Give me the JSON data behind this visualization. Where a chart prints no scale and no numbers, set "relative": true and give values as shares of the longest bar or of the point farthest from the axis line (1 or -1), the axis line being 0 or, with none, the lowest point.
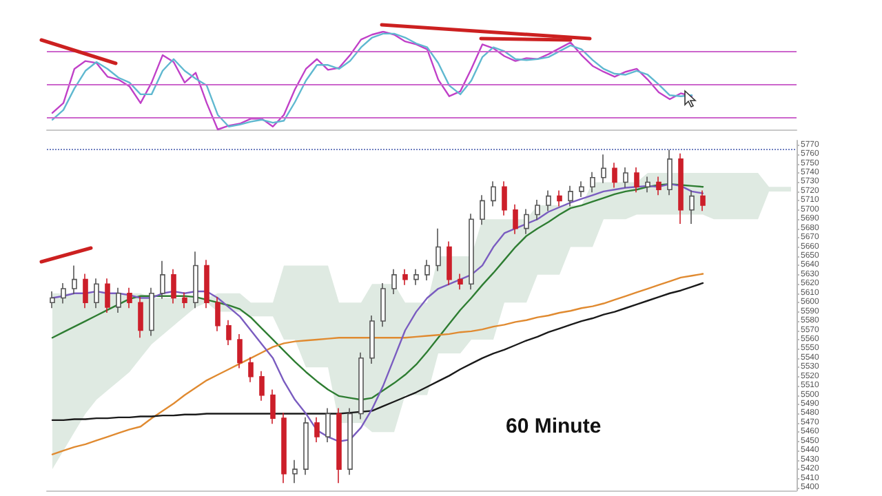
{
  "chart_data": [
    {
      "type": "line",
      "relative": true,
      "categories": [
        null,
        null,
        null,
        null,
        null,
        null,
        null,
        null,
        null,
        null,
        null,
        null,
        null,
        null,
        null,
        null,
        null,
        null,
        null,
        null,
        null,
        null,
        null,
        null,
        null,
        null,
        null,
        null,
        null,
        null,
        null,
        null,
        null,
        null,
        null,
        null,
        null,
        null,
        null,
        null,
        null,
        null,
        null,
        null,
        null,
        null,
        null,
        null,
        null,
        null,
        null,
        null,
        null,
        null,
        null,
        null,
        null,
        null,
        null,
        null,
        null,
        null,
        null,
        null,
        null,
        null,
        null,
        null
      ],
      "tick_labels": false,
      "marker": "none",
      "line_style": "solid",
      "ref_lines": [
        {
          "axis": "y",
          "value": 0.8,
          "color": "#cc66cc"
        },
        {
          "axis": "y",
          "value": 0.46,
          "color": "#cc66cc"
        },
        {
          "axis": "y",
          "value": 0.13,
          "color": "#cc66cc"
        }
      ],
      "series": [
        {
          "color": "#c040c8",
          "values": [
            0.17,
            0.27,
            0.62,
            0.7,
            0.68,
            0.54,
            0.51,
            0.44,
            0.27,
            0.48,
            0.76,
            0.69,
            0.48,
            0.58,
            0.27,
            0,
            0.04,
            0.06,
            0.11,
            0.11,
            0.03,
            0.15,
            0.41,
            0.62,
            0.72,
            0.61,
            0.63,
            0.76,
            0.92,
            0.97,
            1,
            0.97,
            0.9,
            0.87,
            0.82,
            0.51,
            0.34,
            0.39,
            0.62,
            0.87,
            0.83,
            0.75,
            0.7,
            0.73,
            0.72,
            0.77,
            0.83,
            0.89,
            0.76,
            0.65,
            0.59,
            0.54,
            0.59,
            0.62,
            0.51,
            0.38,
            0.31,
            0.37,
            0.34,
            null,
            null,
            null,
            null,
            null,
            null,
            null,
            null,
            null
          ]
        },
        {
          "color": "#5fb8d0",
          "values": [
            0.1,
            0.2,
            0.42,
            0.6,
            0.69,
            0.62,
            0.53,
            0.48,
            0.36,
            0.36,
            0.6,
            0.72,
            0.6,
            0.52,
            0.45,
            0.15,
            0.03,
            0.05,
            0.08,
            0.1,
            0.07,
            0.09,
            0.28,
            0.5,
            0.66,
            0.66,
            0.62,
            0.7,
            0.84,
            0.94,
            0.98,
            0.98,
            0.94,
            0.88,
            0.84,
            0.68,
            0.45,
            0.36,
            0.5,
            0.74,
            0.84,
            0.8,
            0.72,
            0.71,
            0.72,
            0.74,
            0.8,
            0.86,
            0.82,
            0.71,
            0.62,
            0.57,
            0.56,
            0.6,
            0.56,
            0.46,
            0.35,
            0.34,
            0.35,
            null,
            null,
            null,
            null,
            null,
            null,
            null,
            null,
            null
          ]
        }
      ]
    },
    {
      "type": "candlestick",
      "title": "60 Minute",
      "categories": [
        null,
        null,
        null,
        null,
        null,
        null,
        null,
        null,
        null,
        null,
        null,
        null,
        null,
        null,
        null,
        null,
        null,
        null,
        null,
        null,
        null,
        null,
        null,
        null,
        null,
        null,
        null,
        null,
        null,
        null,
        null,
        null,
        null,
        null,
        null,
        null,
        null,
        null,
        null,
        null,
        null,
        null,
        null,
        null,
        null,
        null,
        null,
        null,
        null,
        null,
        null,
        null,
        null,
        null,
        null,
        null,
        null,
        null,
        null,
        null,
        null,
        null,
        null,
        null,
        null,
        null,
        null,
        null
      ],
      "tick_labels": "y",
      "marker": "none",
      "line_style": "solid",
      "grid": false,
      "ylim": [
        5397,
        5775
      ],
      "yticks": [
        5400,
        5410,
        5420,
        5430,
        5440,
        5450,
        5460,
        5470,
        5480,
        5490,
        5500,
        5510,
        5520,
        5530,
        5540,
        5550,
        5560,
        5570,
        5580,
        5590,
        5600,
        5610,
        5620,
        5630,
        5640,
        5650,
        5660,
        5670,
        5680,
        5690,
        5700,
        5710,
        5720,
        5730,
        5740,
        5750,
        5760,
        5770
      ],
      "ref_lines": [
        {
          "axis": "y",
          "value": 5765,
          "color": "#7080c0",
          "line_style": "dotted"
        }
      ],
      "ohlc": [
        [
          5600,
          5612,
          5594,
          5605
        ],
        [
          5605,
          5621,
          5599,
          5615
        ],
        [
          5615,
          5640,
          5609,
          5625
        ],
        [
          5625,
          5631,
          5594,
          5600
        ],
        [
          5600,
          5626,
          5594,
          5620
        ],
        [
          5620,
          5626,
          5589,
          5595
        ],
        [
          5595,
          5616,
          5589,
          5610
        ],
        [
          5610,
          5616,
          5594,
          5600
        ],
        [
          5600,
          5606,
          5562,
          5570
        ],
        [
          5570,
          5616,
          5564,
          5610
        ],
        [
          5610,
          5645,
          5604,
          5630
        ],
        [
          5630,
          5636,
          5599,
          5605
        ],
        [
          5605,
          5611,
          5594,
          5600
        ],
        [
          5600,
          5655,
          5594,
          5640
        ],
        [
          5640,
          5646,
          5594,
          5600
        ],
        [
          5600,
          5606,
          5569,
          5575
        ],
        [
          5575,
          5581,
          5554,
          5560
        ],
        [
          5560,
          5566,
          5529,
          5535
        ],
        [
          5535,
          5541,
          5514,
          5520
        ],
        [
          5520,
          5526,
          5494,
          5500
        ],
        [
          5500,
          5506,
          5469,
          5475
        ],
        [
          5475,
          5481,
          5405,
          5415
        ],
        [
          5415,
          5430,
          5405,
          5420
        ],
        [
          5420,
          5476,
          5414,
          5470
        ],
        [
          5470,
          5476,
          5449,
          5455
        ],
        [
          5455,
          5486,
          5449,
          5480
        ],
        [
          5480,
          5486,
          5405,
          5420
        ],
        [
          5420,
          5486,
          5414,
          5480
        ],
        [
          5480,
          5546,
          5474,
          5540
        ],
        [
          5540,
          5586,
          5534,
          5580
        ],
        [
          5580,
          5621,
          5574,
          5615
        ],
        [
          5615,
          5636,
          5609,
          5630
        ],
        [
          5630,
          5636,
          5619,
          5625
        ],
        [
          5625,
          5636,
          5619,
          5630
        ],
        [
          5630,
          5646,
          5624,
          5640
        ],
        [
          5640,
          5680,
          5634,
          5660
        ],
        [
          5660,
          5666,
          5619,
          5625
        ],
        [
          5625,
          5631,
          5614,
          5620
        ],
        [
          5620,
          5696,
          5614,
          5690
        ],
        [
          5690,
          5716,
          5684,
          5710
        ],
        [
          5710,
          5731,
          5704,
          5725
        ],
        [
          5725,
          5731,
          5694,
          5700
        ],
        [
          5700,
          5706,
          5674,
          5680
        ],
        [
          5680,
          5701,
          5674,
          5695
        ],
        [
          5695,
          5711,
          5689,
          5705
        ],
        [
          5705,
          5721,
          5699,
          5715
        ],
        [
          5715,
          5721,
          5704,
          5710
        ],
        [
          5710,
          5726,
          5704,
          5720
        ],
        [
          5720,
          5731,
          5714,
          5725
        ],
        [
          5725,
          5741,
          5719,
          5735
        ],
        [
          5735,
          5760,
          5729,
          5745
        ],
        [
          5745,
          5751,
          5724,
          5730
        ],
        [
          5730,
          5746,
          5724,
          5740
        ],
        [
          5740,
          5746,
          5719,
          5725
        ],
        [
          5725,
          5736,
          5719,
          5730
        ],
        [
          5730,
          5736,
          5716,
          5722
        ],
        [
          5722,
          5765,
          5716,
          5755
        ],
        [
          5755,
          5761,
          5685,
          5700
        ],
        [
          5700,
          5721,
          5685,
          5715
        ],
        [
          5715,
          5721,
          5699,
          5705
        ],
        null,
        null,
        null,
        null,
        null,
        null,
        null,
        null
      ],
      "series": [
        {
          "type": "area",
          "color": "#dfeae2",
          "values": [
            null,
            null,
            null,
            null,
            null,
            null,
            null,
            null,
            null,
            null,
            null,
            null,
            null,
            null,
            null,
            null,
            null,
            null,
            null,
            null,
            null,
            null,
            null,
            null,
            null,
            null,
            null,
            null,
            null,
            null,
            null,
            null,
            null,
            null,
            null,
            null,
            null,
            null,
            null,
            null,
            null,
            null,
            null,
            null,
            null,
            null,
            null,
            null,
            null,
            null,
            null,
            null,
            null,
            null,
            null,
            null,
            null,
            null,
            null,
            null,
            null,
            null,
            null,
            null,
            null,
            null,
            null,
            null
          ],
          "lower": [
            5420,
            5440,
            5460,
            5480,
            5495,
            5505,
            5515,
            5525,
            5540,
            5555,
            5565,
            5575,
            5585,
            5595,
            5600,
            5590,
            5590,
            5590,
            5585,
            5585,
            5585,
            5560,
            5560,
            5530,
            5530,
            5530,
            5470,
            5470,
            5470,
            5460,
            5460,
            5460,
            5500,
            5500,
            5500,
            5545,
            5545,
            5545,
            5560,
            5560,
            5560,
            5600,
            5600,
            5600,
            5630,
            5630,
            5630,
            5660,
            5660,
            5660,
            5690,
            5690,
            5690,
            5695,
            5695,
            5695,
            5695,
            5695,
            5695,
            5695,
            5690,
            5690,
            5690,
            5690,
            5690,
            5720,
            5720,
            5720
          ],
          "upper": [
            5610,
            5610,
            5610,
            5610,
            5610,
            5610,
            5610,
            5610,
            5610,
            5605,
            5605,
            5605,
            5605,
            5605,
            5605,
            5610,
            5610,
            5610,
            5600,
            5600,
            5600,
            5640,
            5640,
            5640,
            5640,
            5640,
            5600,
            5600,
            5600,
            5620,
            5620,
            5620,
            5600,
            5600,
            5600,
            5650,
            5650,
            5650,
            5650,
            5690,
            5690,
            5690,
            5690,
            5690,
            5705,
            5705,
            5705,
            5705,
            5705,
            5730,
            5730,
            5730,
            5730,
            5730,
            5740,
            5740,
            5740,
            5740,
            5740,
            5740,
            5740,
            5740,
            5740,
            5740,
            5740,
            5725,
            5725,
            5725
          ]
        },
        {
          "type": "line",
          "color": "#2e7d32",
          "values": [
            5562,
            5568,
            5574,
            5580,
            5586,
            5592,
            5598,
            5604,
            5607,
            5607,
            5607,
            5607,
            5607,
            5606,
            5603,
            5600,
            5597,
            5593,
            5584,
            5572,
            5560,
            5548,
            5536,
            5525,
            5515,
            5506,
            5499,
            5497,
            5495,
            5497,
            5505,
            5513,
            5522,
            5533,
            5547,
            5562,
            5577,
            5592,
            5605,
            5619,
            5632,
            5646,
            5660,
            5672,
            5680,
            5687,
            5695,
            5702,
            5705,
            5709,
            5713,
            5717,
            5720,
            5722,
            5725,
            5727,
            5728,
            5727,
            5726,
            5725,
            null,
            null,
            null,
            null,
            null,
            null,
            null,
            null
          ]
        },
        {
          "type": "line",
          "color": "#e08a30",
          "values": [
            5436,
            5440,
            5444,
            5447,
            5451,
            5455,
            5459,
            5463,
            5466,
            5475,
            5483,
            5491,
            5500,
            5508,
            5516,
            5522,
            5528,
            5534,
            5540,
            5546,
            5552,
            5556,
            5558,
            5559,
            5560,
            5561,
            5562,
            5562,
            5562,
            5562,
            5562,
            5562,
            5562,
            5563,
            5564,
            5565,
            5566,
            5568,
            5569,
            5571,
            5574,
            5576,
            5579,
            5581,
            5584,
            5586,
            5589,
            5591,
            5594,
            5596,
            5599,
            5603,
            5607,
            5611,
            5615,
            5619,
            5623,
            5627,
            5629,
            5631,
            null,
            null,
            null,
            null,
            null,
            null,
            null,
            null
          ]
        },
        {
          "type": "line",
          "color": "#1a1a1a",
          "values": [
            5473,
            5473,
            5474,
            5474,
            5475,
            5475,
            5476,
            5476,
            5477,
            5477,
            5478,
            5478,
            5479,
            5479,
            5480,
            5480,
            5480,
            5480,
            5480,
            5480,
            5480,
            5480,
            5480,
            5480,
            5480,
            5480,
            5480,
            5481,
            5482,
            5483,
            5488,
            5493,
            5498,
            5503,
            5509,
            5515,
            5521,
            5528,
            5534,
            5540,
            5545,
            5549,
            5554,
            5559,
            5563,
            5568,
            5572,
            5576,
            5580,
            5583,
            5587,
            5590,
            5594,
            5598,
            5602,
            5606,
            5610,
            5613,
            5617,
            5621,
            null,
            null,
            null,
            null,
            null,
            null,
            null,
            null
          ]
        },
        {
          "type": "line",
          "color": "#7a5cc0",
          "values": [
            5605,
            5607,
            5610,
            5610,
            5612,
            5610,
            5610,
            5608,
            5605,
            5605,
            5610,
            5612,
            5610,
            5612,
            5612,
            5605,
            5595,
            5585,
            5570,
            5555,
            5540,
            5515,
            5495,
            5480,
            5462,
            5455,
            5450,
            5452,
            5465,
            5485,
            5510,
            5540,
            5570,
            5590,
            5605,
            5615,
            5620,
            5625,
            5630,
            5640,
            5660,
            5675,
            5680,
            5685,
            5690,
            5698,
            5703,
            5708,
            5712,
            5716,
            5720,
            5722,
            5724,
            5725,
            5726,
            5725,
            5728,
            5726,
            5720,
            5718,
            null,
            null,
            null,
            null,
            null,
            null,
            null,
            null
          ]
        }
      ]
    }
  ]
}
